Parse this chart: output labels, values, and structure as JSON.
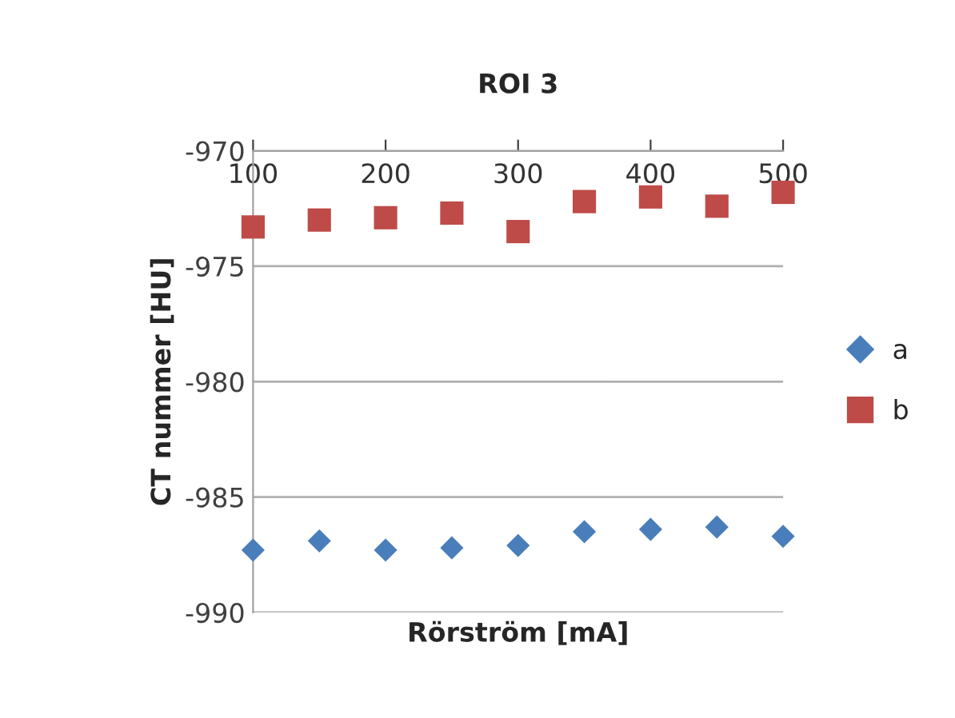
{
  "chart_data": {
    "type": "scatter",
    "title": "ROI 3",
    "xlabel": "Rörström [mA]",
    "ylabel": "CT nummer [HU]",
    "x": [
      100,
      150,
      200,
      250,
      300,
      350,
      400,
      450,
      500
    ],
    "series": [
      {
        "name": "a",
        "color": "#4a7ebb",
        "marker": "diamond",
        "values": [
          -987.3,
          -986.9,
          -987.3,
          -987.2,
          -987.1,
          -986.5,
          -986.4,
          -986.3,
          -986.7
        ]
      },
      {
        "name": "b",
        "color": "#be4b48",
        "marker": "square",
        "values": [
          -973.3,
          -973.0,
          -972.9,
          -972.7,
          -973.5,
          -972.2,
          -972.0,
          -972.4,
          -971.8
        ]
      }
    ],
    "xlim": [
      100,
      500
    ],
    "xticks": [
      100,
      200,
      300,
      400,
      500
    ],
    "ylim": [
      -990,
      -970
    ],
    "yticks": [
      -990,
      -985,
      -980,
      -975,
      -970
    ],
    "grid": "y",
    "legend": "right"
  }
}
